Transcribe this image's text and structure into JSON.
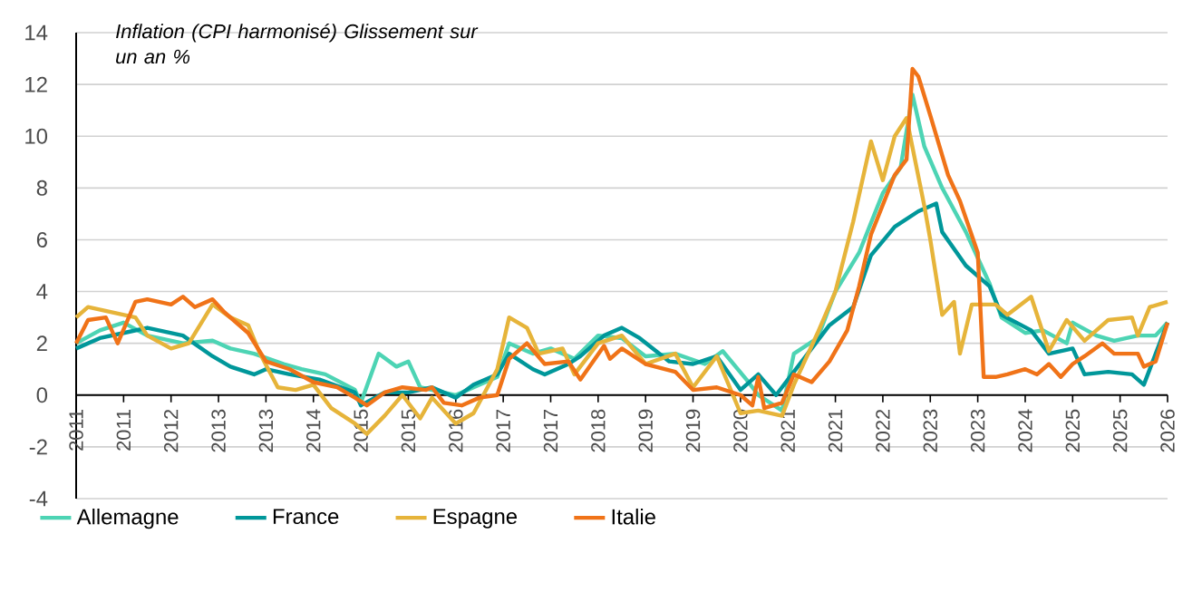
{
  "chart_data": {
    "type": "line",
    "title": "Inflation (CPI harmonisé) Glissement sur un an %",
    "xlim": [
      "2011-01",
      "2026-05"
    ],
    "xticks": [
      {
        "value": "2011-01",
        "label": "2011"
      },
      {
        "value": "2011-09",
        "label": "2011"
      },
      {
        "value": "2012-05",
        "label": "2012"
      },
      {
        "value": "2013-01",
        "label": "2013"
      },
      {
        "value": "2013-09",
        "label": "2013"
      },
      {
        "value": "2014-05",
        "label": "2014"
      },
      {
        "value": "2015-01",
        "label": "2015"
      },
      {
        "value": "2015-09",
        "label": "2015"
      },
      {
        "value": "2016-05",
        "label": "2016"
      },
      {
        "value": "2017-01",
        "label": "2017"
      },
      {
        "value": "2017-09",
        "label": "2017"
      },
      {
        "value": "2018-05",
        "label": "2018"
      },
      {
        "value": "2019-01",
        "label": "2019"
      },
      {
        "value": "2019-09",
        "label": "2019"
      },
      {
        "value": "2020-05",
        "label": "2020"
      },
      {
        "value": "2021-01",
        "label": "2021"
      },
      {
        "value": "2021-09",
        "label": "2021"
      },
      {
        "value": "2022-05",
        "label": "2022"
      },
      {
        "value": "2023-01",
        "label": "2023"
      },
      {
        "value": "2023-09",
        "label": "2023"
      },
      {
        "value": "2024-05",
        "label": "2024"
      },
      {
        "value": "2025-01",
        "label": "2025"
      },
      {
        "value": "2025-09",
        "label": "2025"
      },
      {
        "value": "2026-05",
        "label": "2026"
      }
    ],
    "ylim": [
      -4,
      14
    ],
    "yticks": [
      -4,
      -2,
      0,
      2,
      4,
      6,
      8,
      10,
      12,
      14
    ],
    "grid": "y",
    "legend": "bottom",
    "marker": "none",
    "line_style": "solid",
    "series": [
      {
        "name": "Allemagne",
        "color": "#4dd4b4",
        "x": [
          "2011-01",
          "2011-05",
          "2011-09",
          "2012-01",
          "2012-07",
          "2012-12",
          "2013-03",
          "2013-07",
          "2013-12",
          "2014-03",
          "2014-07",
          "2014-12",
          "2015-01",
          "2015-04",
          "2015-07",
          "2015-09",
          "2015-11",
          "2016-01",
          "2016-05",
          "2016-08",
          "2016-12",
          "2017-02",
          "2017-06",
          "2017-09",
          "2018-01",
          "2018-05",
          "2018-09",
          "2019-01",
          "2019-06",
          "2019-11",
          "2020-02",
          "2020-06",
          "2020-08",
          "2020-12",
          "2021-02",
          "2021-06",
          "2021-09",
          "2022-01",
          "2022-05",
          "2022-08",
          "2022-10",
          "2022-12",
          "2023-03",
          "2023-07",
          "2023-11",
          "2024-01",
          "2024-05",
          "2024-08",
          "2024-12",
          "2025-01",
          "2025-05",
          "2025-08",
          "2025-12",
          "2026-03",
          "2026-05"
        ],
        "values": [
          2.0,
          2.5,
          2.8,
          2.3,
          2.0,
          2.1,
          1.8,
          1.6,
          1.2,
          1.0,
          0.8,
          0.2,
          -0.3,
          1.6,
          1.1,
          1.3,
          0.3,
          0.2,
          0.0,
          0.3,
          0.7,
          2.0,
          1.6,
          1.8,
          1.4,
          2.3,
          2.2,
          1.5,
          1.6,
          1.2,
          1.7,
          0.6,
          0.0,
          -0.6,
          1.6,
          2.2,
          4.0,
          5.5,
          7.8,
          8.8,
          11.6,
          9.6,
          8.0,
          6.3,
          4.3,
          3.0,
          2.4,
          2.5,
          2.0,
          2.8,
          2.3,
          2.1,
          2.3,
          2.3,
          2.8
        ]
      },
      {
        "name": "France",
        "color": "#00979a",
        "x": [
          "2011-01",
          "2011-05",
          "2011-09",
          "2012-01",
          "2012-07",
          "2012-12",
          "2013-03",
          "2013-07",
          "2013-09",
          "2014-01",
          "2014-06",
          "2014-12",
          "2015-01",
          "2015-05",
          "2015-09",
          "2016-01",
          "2016-05",
          "2016-08",
          "2016-12",
          "2017-02",
          "2017-06",
          "2017-08",
          "2017-12",
          "2018-02",
          "2018-06",
          "2018-09",
          "2018-12",
          "2019-05",
          "2019-09",
          "2020-01",
          "2020-05",
          "2020-08",
          "2020-11",
          "2021-01",
          "2021-05",
          "2021-08",
          "2021-12",
          "2022-03",
          "2022-07",
          "2022-11",
          "2023-02",
          "2023-03",
          "2023-07",
          "2023-11",
          "2024-01",
          "2024-06",
          "2024-09",
          "2025-01",
          "2025-03",
          "2025-07",
          "2025-11",
          "2026-01",
          "2026-05"
        ],
        "values": [
          1.8,
          2.2,
          2.4,
          2.6,
          2.3,
          1.5,
          1.1,
          0.8,
          1.0,
          0.8,
          0.6,
          0.1,
          -0.4,
          0.1,
          0.1,
          0.3,
          -0.1,
          0.4,
          0.8,
          1.6,
          1.0,
          0.8,
          1.2,
          1.5,
          2.3,
          2.6,
          2.2,
          1.3,
          1.2,
          1.5,
          0.2,
          0.8,
          0.0,
          0.6,
          1.8,
          2.7,
          3.4,
          5.4,
          6.5,
          7.1,
          7.4,
          6.3,
          5.0,
          4.2,
          3.1,
          2.5,
          1.6,
          1.8,
          0.8,
          0.9,
          0.8,
          0.4,
          2.8
        ]
      },
      {
        "name": "Espagne",
        "color": "#e6b43a",
        "x": [
          "2011-01",
          "2011-03",
          "2011-07",
          "2011-11",
          "2012-01",
          "2012-05",
          "2012-08",
          "2012-12",
          "2013-03",
          "2013-06",
          "2013-08",
          "2013-11",
          "2014-02",
          "2014-05",
          "2014-08",
          "2014-12",
          "2015-02",
          "2015-05",
          "2015-08",
          "2015-11",
          "2016-01",
          "2016-05",
          "2016-08",
          "2016-12",
          "2017-02",
          "2017-05",
          "2017-07",
          "2017-11",
          "2018-01",
          "2018-05",
          "2018-09",
          "2019-01",
          "2019-06",
          "2019-09",
          "2020-01",
          "2020-05",
          "2020-08",
          "2020-12",
          "2021-02",
          "2021-06",
          "2021-09",
          "2021-12",
          "2022-03",
          "2022-05",
          "2022-07",
          "2022-09",
          "2022-12",
          "2023-01",
          "2023-03",
          "2023-05",
          "2023-06",
          "2023-08",
          "2023-12",
          "2024-02",
          "2024-06",
          "2024-09",
          "2024-12",
          "2025-03",
          "2025-07",
          "2025-11",
          "2025-12",
          "2026-02",
          "2026-05"
        ],
        "values": [
          3.0,
          3.4,
          3.2,
          3.0,
          2.3,
          1.8,
          2.0,
          3.5,
          3.0,
          2.7,
          1.6,
          0.3,
          0.2,
          0.4,
          -0.5,
          -1.1,
          -1.5,
          -0.8,
          0.0,
          -0.9,
          -0.1,
          -1.1,
          -0.7,
          1.0,
          3.0,
          2.6,
          1.6,
          1.8,
          0.8,
          2.0,
          2.3,
          1.2,
          1.6,
          0.3,
          1.5,
          -0.7,
          -0.6,
          -0.8,
          0.4,
          2.4,
          4.0,
          6.7,
          9.8,
          8.3,
          10.0,
          10.7,
          7.3,
          6.0,
          3.1,
          3.6,
          1.6,
          3.5,
          3.5,
          3.1,
          3.8,
          1.7,
          2.9,
          2.1,
          2.9,
          3.0,
          2.3,
          3.4,
          3.6
        ]
      },
      {
        "name": "Italie",
        "color": "#f07318",
        "x": [
          "2011-01",
          "2011-03",
          "2011-06",
          "2011-08",
          "2011-11",
          "2012-01",
          "2012-05",
          "2012-07",
          "2012-09",
          "2012-12",
          "2013-02",
          "2013-06",
          "2013-09",
          "2014-01",
          "2014-05",
          "2014-09",
          "2014-12",
          "2015-02",
          "2015-05",
          "2015-08",
          "2015-12",
          "2016-01",
          "2016-03",
          "2016-06",
          "2016-09",
          "2016-12",
          "2017-02",
          "2017-05",
          "2017-08",
          "2017-12",
          "2018-02",
          "2018-06",
          "2018-07",
          "2018-09",
          "2019-01",
          "2019-06",
          "2019-09",
          "2020-01",
          "2020-05",
          "2020-07",
          "2020-08",
          "2020-09",
          "2020-12",
          "2021-02",
          "2021-05",
          "2021-08",
          "2021-11",
          "2022-01",
          "2022-03",
          "2022-07",
          "2022-09",
          "2022-10",
          "2022-11",
          "2023-01",
          "2023-04",
          "2023-06",
          "2023-09",
          "2023-10",
          "2023-12",
          "2024-02",
          "2024-05",
          "2024-07",
          "2024-09",
          "2024-11",
          "2025-01",
          "2025-03",
          "2025-06",
          "2025-08",
          "2025-12",
          "2026-01",
          "2026-03",
          "2026-05"
        ],
        "values": [
          2.0,
          2.9,
          3.0,
          2.0,
          3.6,
          3.7,
          3.5,
          3.8,
          3.4,
          3.7,
          3.2,
          2.4,
          1.3,
          1.0,
          0.5,
          0.3,
          -0.1,
          -0.4,
          0.1,
          0.3,
          0.2,
          0.3,
          -0.3,
          -0.4,
          -0.1,
          0.0,
          1.4,
          2.0,
          1.2,
          1.3,
          0.6,
          1.9,
          1.4,
          1.8,
          1.2,
          0.9,
          0.2,
          0.3,
          0.0,
          -0.4,
          0.7,
          -0.5,
          -0.3,
          0.8,
          0.5,
          1.3,
          2.5,
          4.2,
          6.2,
          8.5,
          9.1,
          12.6,
          12.3,
          10.8,
          8.5,
          7.5,
          5.5,
          0.7,
          0.7,
          0.8,
          1.0,
          0.8,
          1.2,
          0.7,
          1.2,
          1.5,
          2.0,
          1.6,
          1.6,
          1.1,
          1.3,
          2.8
        ]
      }
    ]
  }
}
